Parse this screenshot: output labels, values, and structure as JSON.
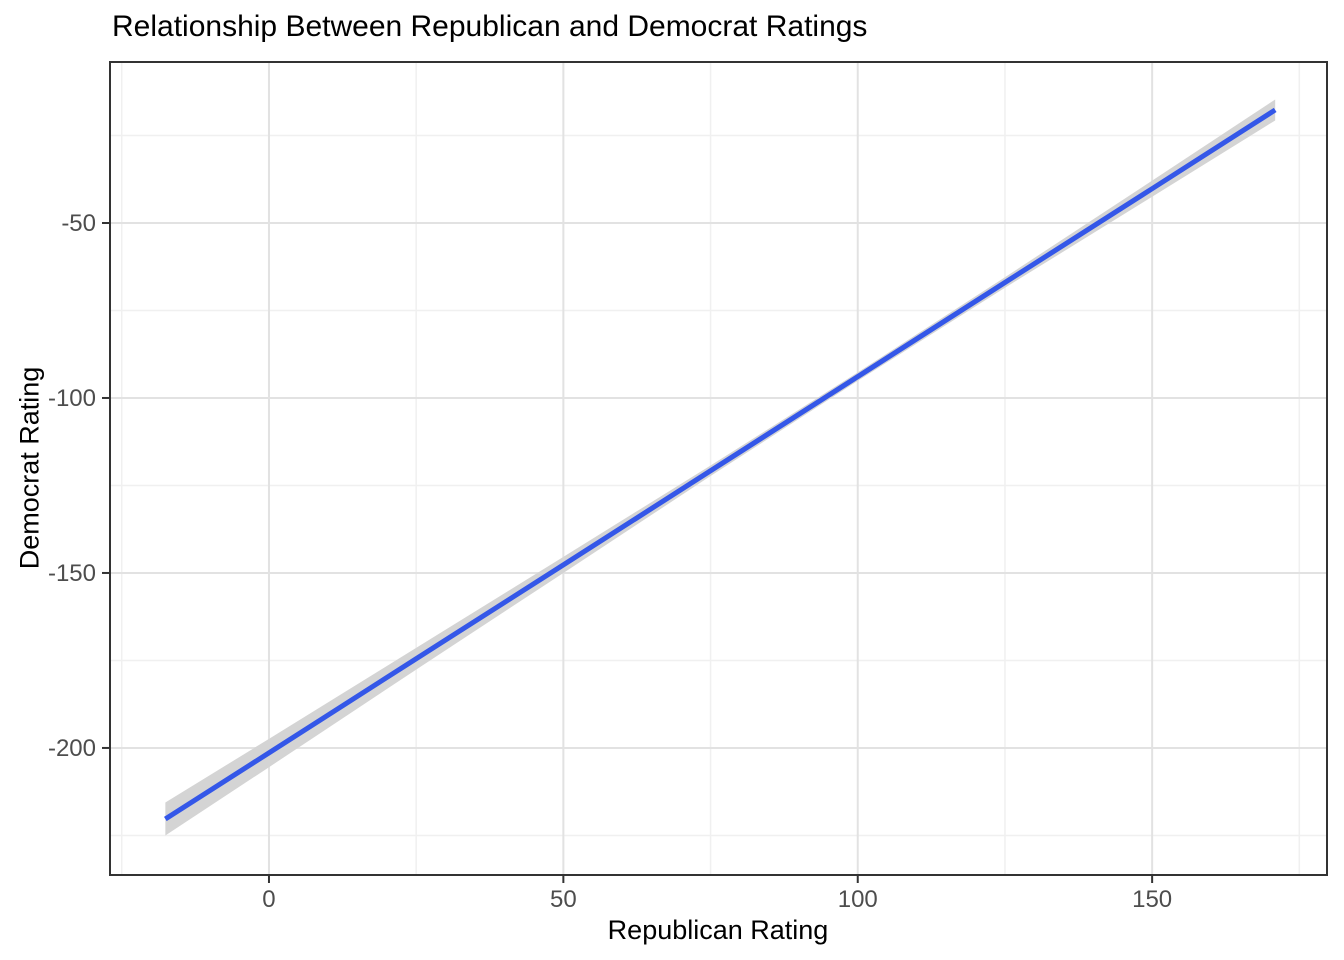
{
  "chart_data": {
    "type": "line",
    "title": "Relationship Between Republican and Democrat Ratings",
    "xlabel": "Republican Rating",
    "ylabel": "Democrat Rating",
    "xlim": [
      -27,
      179.7
    ],
    "ylim": [
      -236.3,
      -4.0
    ],
    "x_major_ticks": [
      0,
      50,
      100,
      150
    ],
    "x_minor_ticks": [
      -25,
      25,
      75,
      125,
      175
    ],
    "y_major_ticks": [
      -50,
      -100,
      -150,
      -200
    ],
    "y_minor_ticks": [
      -25,
      -75,
      -125,
      -175,
      -225
    ],
    "x_tick_labels": [
      "0",
      "50",
      "100",
      "150"
    ],
    "y_tick_labels": [
      "-50",
      "-100",
      "-150",
      "-200"
    ],
    "grid": true,
    "legend": "none",
    "series": [
      {
        "name": "linear-fit",
        "x": [
          -17.6,
          0,
          25,
          50,
          75,
          100,
          125,
          150,
          170.9
        ],
        "y": [
          -220.3,
          -201.4,
          -174.5,
          -147.7,
          -120.8,
          -93.9,
          -67.0,
          -40.2,
          -17.7
        ]
      }
    ],
    "ribbon": {
      "name": "confidence-band",
      "x": [
        -17.6,
        0,
        25,
        50,
        75,
        100,
        125,
        150,
        170.9
      ],
      "upper": [
        -215.6,
        -197.4,
        -171.4,
        -145.4,
        -119.3,
        -92.7,
        -65.5,
        -37.9,
        -14.7
      ],
      "lower": [
        -225.0,
        -205.5,
        -177.6,
        -150.0,
        -122.3,
        -95.1,
        -68.5,
        -42.5,
        -20.7
      ]
    },
    "regression": {
      "slope": 1.07,
      "intercept": -201.4
    },
    "colors": {
      "line": "#3457E8",
      "ribbon": "#D4D4D4",
      "grid_major": "#E2E2E2",
      "grid_minor": "#F0F0F0",
      "panel_border": "#333333",
      "tick_mark": "#333333",
      "tick_label": "#4D4D4D",
      "text": "#000000",
      "background": "#FFFFFF"
    }
  }
}
